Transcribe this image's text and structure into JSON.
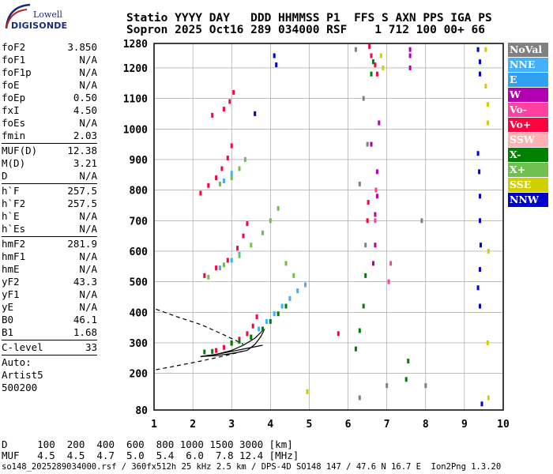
{
  "logo": {
    "top": "Lowell",
    "bottom": "DIGISONDE"
  },
  "header": {
    "line1": "Statio YYYY DAY   DDD HHMMSS P1  FFS S AXN PPS IGA PS",
    "line2": "Sopron 2025 Oct16 289 034000 RSF    1 712 100 00+ 66"
  },
  "params": [
    [
      [
        "foF2",
        "3.850"
      ],
      [
        "foF1",
        "N/A"
      ],
      [
        "foF1p",
        "N/A"
      ],
      [
        "foE",
        "N/A"
      ],
      [
        "foEp",
        "0.50"
      ],
      [
        "fxI",
        "4.50"
      ],
      [
        "foEs",
        "N/A"
      ],
      [
        "fmin",
        "2.03"
      ]
    ],
    [
      [
        "MUF(D)",
        "12.38"
      ],
      [
        "M(D)",
        "3.21"
      ],
      [
        "D",
        "N/A"
      ]
    ],
    [
      [
        "h`F",
        "257.5"
      ],
      [
        "h`F2",
        "257.5"
      ],
      [
        "h`E",
        "N/A"
      ],
      [
        "h`Es",
        "N/A"
      ]
    ],
    [
      [
        "hmF2",
        "281.9"
      ],
      [
        "hmF1",
        "N/A"
      ],
      [
        "hmE",
        "N/A"
      ],
      [
        "yF2",
        "43.3"
      ],
      [
        "yF1",
        "N/A"
      ],
      [
        "yE",
        "N/A"
      ],
      [
        "B0",
        "46.1"
      ],
      [
        "B1",
        "1.68"
      ]
    ],
    [
      [
        "C-level",
        "33"
      ]
    ]
  ],
  "auto": {
    "label": "Auto:",
    "artist": "Artist5",
    "version": "500200"
  },
  "legend": [
    {
      "label": "NoVal",
      "color": "#808080"
    },
    {
      "label": "NNE",
      "color": "#40b0ff"
    },
    {
      "label": "E",
      "color": "#30a0f0"
    },
    {
      "label": "W",
      "color": "#b000b0"
    },
    {
      "label": "Vo-",
      "color": "#ff40a0"
    },
    {
      "label": "Vo+",
      "color": "#ff0040"
    },
    {
      "label": "SSW",
      "color": "#ffb0b0"
    },
    {
      "label": "X-",
      "color": "#008000"
    },
    {
      "label": "X+",
      "color": "#70c050"
    },
    {
      "label": "SSE",
      "color": "#d0d000"
    },
    {
      "label": "NNW",
      "color": "#0000d0"
    }
  ],
  "chart_data": {
    "type": "scatter",
    "title": "",
    "xlabel": "",
    "ylabel": "",
    "xlim": [
      1,
      10
    ],
    "ylim": [
      80,
      1280
    ],
    "x_ticks": [
      1,
      2,
      3,
      4,
      5,
      6,
      7,
      8,
      9,
      10
    ],
    "y_ticks": [
      80,
      200,
      300,
      400,
      500,
      600,
      700,
      800,
      900,
      1000,
      1100,
      1200,
      1280
    ],
    "grid": true,
    "legend_position": "right",
    "series": [
      {
        "name": "Vo+",
        "color": "#ff0040",
        "points": [
          [
            2.6,
            275
          ],
          [
            2.8,
            285
          ],
          [
            3.0,
            298
          ],
          [
            3.2,
            312
          ],
          [
            3.4,
            330
          ],
          [
            3.55,
            355
          ],
          [
            3.65,
            385
          ],
          [
            2.3,
            520
          ],
          [
            2.6,
            545
          ],
          [
            2.9,
            570
          ],
          [
            3.15,
            610
          ],
          [
            3.3,
            650
          ],
          [
            3.4,
            690
          ],
          [
            2.2,
            790
          ],
          [
            2.4,
            815
          ],
          [
            2.6,
            840
          ],
          [
            2.75,
            870
          ],
          [
            2.9,
            905
          ],
          [
            3.0,
            945
          ],
          [
            2.5,
            1045
          ],
          [
            2.8,
            1065
          ],
          [
            2.95,
            1090
          ],
          [
            3.05,
            1120
          ],
          [
            6.55,
            1270
          ],
          [
            6.6,
            1240
          ],
          [
            6.7,
            1210
          ],
          [
            6.75,
            1180
          ],
          [
            6.5,
            700
          ],
          [
            6.52,
            760
          ],
          [
            5.75,
            330
          ]
        ]
      },
      {
        "name": "NNE",
        "color": "#40b0ff",
        "points": [
          [
            3.5,
            320
          ],
          [
            3.7,
            345
          ],
          [
            3.9,
            370
          ],
          [
            4.1,
            395
          ],
          [
            4.3,
            420
          ],
          [
            4.5,
            445
          ],
          [
            4.7,
            470
          ],
          [
            4.9,
            490
          ],
          [
            2.7,
            545
          ],
          [
            3.0,
            570
          ],
          [
            3.2,
            590
          ],
          [
            2.8,
            830
          ],
          [
            3.0,
            855
          ]
        ]
      },
      {
        "name": "X-",
        "color": "#008000",
        "points": [
          [
            2.3,
            270
          ],
          [
            2.5,
            272
          ],
          [
            3.0,
            300
          ],
          [
            3.2,
            305
          ],
          [
            3.5,
            318
          ],
          [
            3.8,
            345
          ],
          [
            4.0,
            370
          ],
          [
            4.2,
            395
          ],
          [
            4.4,
            420
          ],
          [
            6.2,
            280
          ],
          [
            6.3,
            340
          ],
          [
            6.4,
            420
          ],
          [
            6.45,
            520
          ],
          [
            7.5,
            180
          ],
          [
            7.55,
            240
          ],
          [
            6.6,
            1180
          ],
          [
            6.65,
            1220
          ]
        ]
      },
      {
        "name": "X+",
        "color": "#70c050",
        "points": [
          [
            2.4,
            515
          ],
          [
            2.8,
            555
          ],
          [
            3.2,
            585
          ],
          [
            3.5,
            620
          ],
          [
            3.8,
            660
          ],
          [
            4.0,
            700
          ],
          [
            4.2,
            740
          ],
          [
            2.7,
            820
          ],
          [
            3.0,
            840
          ],
          [
            3.2,
            870
          ],
          [
            3.35,
            900
          ],
          [
            4.4,
            560
          ],
          [
            4.6,
            520
          ]
        ]
      },
      {
        "name": "W",
        "color": "#b000b0",
        "points": [
          [
            6.65,
            560
          ],
          [
            6.7,
            620
          ],
          [
            6.7,
            720
          ],
          [
            6.75,
            780
          ],
          [
            6.75,
            860
          ],
          [
            6.6,
            950
          ],
          [
            6.8,
            1020
          ],
          [
            7.6,
            1200
          ],
          [
            7.6,
            1240
          ],
          [
            7.6,
            1260
          ]
        ]
      },
      {
        "name": "Vo-",
        "color": "#ff40a0",
        "points": [
          [
            6.7,
            700
          ],
          [
            6.72,
            800
          ],
          [
            7.05,
            500
          ],
          [
            7.1,
            560
          ]
        ]
      },
      {
        "name": "SSE",
        "color": "#d0d000",
        "points": [
          [
            9.55,
            1140
          ],
          [
            9.6,
            1080
          ],
          [
            9.6,
            1020
          ],
          [
            9.62,
            600
          ],
          [
            9.6,
            300
          ],
          [
            9.62,
            120
          ],
          [
            6.85,
            1240
          ],
          [
            6.9,
            1200
          ],
          [
            4.95,
            140
          ],
          [
            9.55,
            1260
          ]
        ]
      },
      {
        "name": "NNW",
        "color": "#0000d0",
        "points": [
          [
            9.35,
            1260
          ],
          [
            9.4,
            1220
          ],
          [
            9.4,
            1180
          ],
          [
            9.35,
            920
          ],
          [
            9.38,
            860
          ],
          [
            9.4,
            780
          ],
          [
            9.4,
            700
          ],
          [
            9.42,
            620
          ],
          [
            9.4,
            540
          ],
          [
            9.35,
            480
          ],
          [
            9.4,
            420
          ],
          [
            9.45,
            100
          ],
          [
            4.1,
            1240
          ],
          [
            4.15,
            1210
          ],
          [
            3.6,
            1050
          ]
        ]
      },
      {
        "name": "NoVal",
        "color": "#808080",
        "points": [
          [
            6.2,
            1260
          ],
          [
            6.4,
            1100
          ],
          [
            6.5,
            950
          ],
          [
            6.3,
            820
          ],
          [
            6.45,
            620
          ],
          [
            7.0,
            160
          ],
          [
            6.3,
            120
          ],
          [
            7.9,
            700
          ],
          [
            8.0,
            160
          ]
        ]
      }
    ],
    "curves": [
      {
        "style": "dashed",
        "points": [
          [
            1.05,
            410
          ],
          [
            1.6,
            385
          ],
          [
            2.2,
            360
          ],
          [
            2.7,
            332
          ],
          [
            3.1,
            308
          ],
          [
            3.3,
            295
          ]
        ]
      },
      {
        "style": "dashed",
        "points": [
          [
            1.05,
            212
          ],
          [
            1.6,
            225
          ],
          [
            2.2,
            240
          ],
          [
            2.7,
            254
          ],
          [
            3.1,
            266
          ],
          [
            3.3,
            273
          ]
        ]
      },
      {
        "style": "solid",
        "points": [
          [
            2.2,
            255
          ],
          [
            2.6,
            262
          ],
          [
            3.0,
            272
          ],
          [
            3.4,
            282
          ],
          [
            3.8,
            292
          ]
        ]
      },
      {
        "style": "solid",
        "points": [
          [
            2.2,
            255
          ],
          [
            2.6,
            258
          ],
          [
            3.0,
            265
          ],
          [
            3.4,
            275
          ],
          [
            3.6,
            295
          ],
          [
            3.75,
            320
          ],
          [
            3.85,
            345
          ]
        ]
      },
      {
        "style": "solid",
        "points": [
          [
            2.2,
            255
          ],
          [
            2.6,
            262
          ],
          [
            3.0,
            275
          ],
          [
            3.3,
            292
          ],
          [
            3.6,
            315
          ],
          [
            3.8,
            340
          ]
        ]
      }
    ]
  },
  "bottom": {
    "row1": "D     100  200  400  600  800 1000 1500 3000 [km]",
    "row2": "MUF   4.5  4.5  4.7  5.0  5.4  6.0  7.8 12.4 [MHz]"
  },
  "footer": "so148_2025289034000.rsf / 360fx512h 25 kHz 2.5 km / DPS-4D SO148 147 / 47.6 N 16.7 E  Ion2Png 1.3.20"
}
